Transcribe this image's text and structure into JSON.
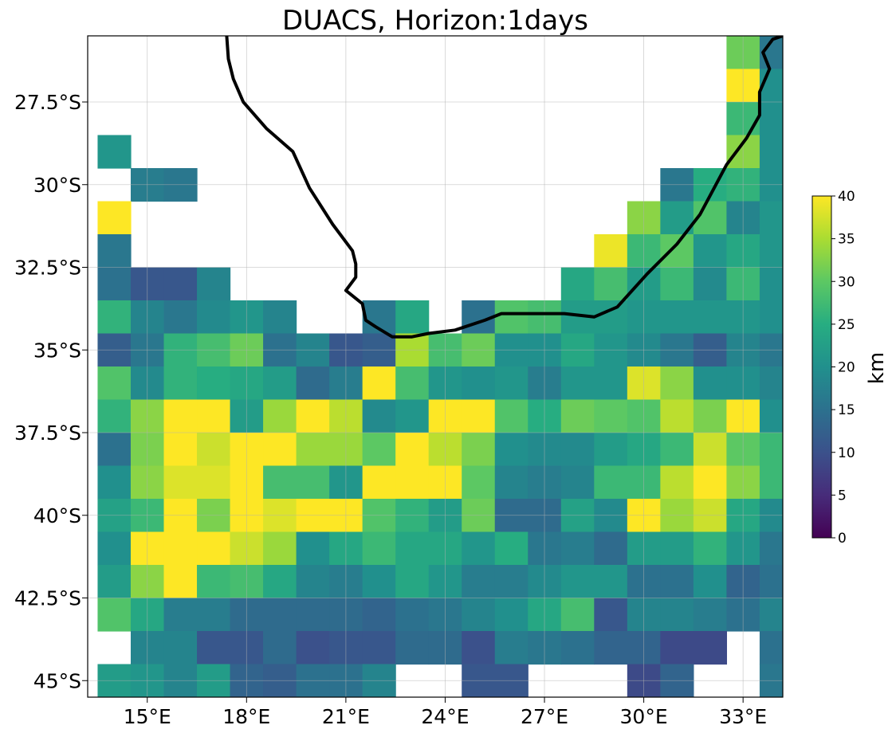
{
  "chart_data": {
    "type": "heatmap",
    "title": "DUACS, Horizon:1days",
    "x_ticks": [
      "15°E",
      "18°E",
      "21°E",
      "24°E",
      "27°E",
      "30°E",
      "33°E"
    ],
    "y_ticks": [
      "27.5°S",
      "30°S",
      "32.5°S",
      "35°S",
      "37.5°S",
      "40°S",
      "42.5°S",
      "45°S"
    ],
    "lon_centers": [
      14,
      15,
      16,
      17,
      18,
      19,
      20,
      21,
      22,
      23,
      24,
      25,
      26,
      27,
      28,
      29,
      30,
      31,
      32,
      33,
      34
    ],
    "lat_centers": [
      -26,
      -27,
      -28,
      -29,
      -30,
      -31,
      -32,
      -33,
      -34,
      -35,
      -36,
      -37,
      -38,
      -39,
      -40,
      -41,
      -42,
      -43,
      -44,
      -45
    ],
    "xlim": [
      13.2,
      34.2
    ],
    "ylim": [
      -45.5,
      -25.5
    ],
    "values": [
      [
        null,
        null,
        null,
        null,
        null,
        null,
        null,
        null,
        null,
        null,
        null,
        null,
        null,
        null,
        null,
        null,
        null,
        null,
        null,
        31,
        16
      ],
      [
        null,
        null,
        null,
        null,
        null,
        null,
        null,
        null,
        null,
        null,
        null,
        null,
        null,
        null,
        null,
        null,
        null,
        null,
        null,
        40,
        20
      ],
      [
        null,
        null,
        null,
        null,
        null,
        null,
        null,
        null,
        null,
        null,
        null,
        null,
        null,
        null,
        null,
        null,
        null,
        null,
        null,
        27,
        20
      ],
      [
        21,
        null,
        null,
        null,
        null,
        null,
        null,
        null,
        null,
        null,
        null,
        null,
        null,
        null,
        null,
        null,
        null,
        null,
        null,
        33,
        20
      ],
      [
        null,
        17,
        16,
        null,
        null,
        null,
        null,
        null,
        null,
        null,
        null,
        null,
        null,
        null,
        null,
        null,
        null,
        16,
        25,
        26,
        20
      ],
      [
        40,
        null,
        null,
        null,
        null,
        null,
        null,
        null,
        null,
        null,
        null,
        null,
        null,
        null,
        null,
        null,
        33,
        22,
        29,
        18,
        21
      ],
      [
        16,
        null,
        null,
        null,
        null,
        null,
        null,
        null,
        null,
        null,
        null,
        null,
        null,
        null,
        null,
        39,
        27,
        30,
        21,
        24,
        21
      ],
      [
        15,
        11,
        11,
        18,
        null,
        null,
        null,
        null,
        null,
        null,
        null,
        null,
        null,
        null,
        24,
        28,
        22,
        27,
        19,
        27,
        20
      ],
      [
        26,
        18,
        16,
        19,
        21,
        18,
        null,
        null,
        16,
        24,
        null,
        15,
        29,
        28,
        22,
        22,
        21,
        21,
        21,
        21,
        20
      ],
      [
        12,
        16,
        26,
        28,
        31,
        15,
        18,
        11,
        12,
        35,
        28,
        31,
        20,
        20,
        24,
        21,
        19,
        16,
        12,
        18,
        16
      ],
      [
        29,
        19,
        26,
        25,
        24,
        22,
        14,
        17,
        40,
        28,
        21,
        20,
        21,
        17,
        21,
        21,
        38,
        33,
        20,
        20,
        18
      ],
      [
        26,
        33,
        40,
        40,
        22,
        34,
        40,
        36,
        19,
        21,
        40,
        40,
        29,
        25,
        31,
        30,
        29,
        36,
        32,
        40,
        20
      ],
      [
        15,
        32,
        40,
        37,
        40,
        40,
        34,
        34,
        30,
        40,
        36,
        32,
        20,
        19,
        19,
        22,
        24,
        27,
        37,
        30,
        27
      ],
      [
        20,
        33,
        38,
        38,
        40,
        28,
        28,
        21,
        40,
        40,
        40,
        30,
        18,
        17,
        18,
        27,
        27,
        36,
        40,
        33,
        27
      ],
      [
        23,
        27,
        40,
        32,
        40,
        38,
        40,
        40,
        29,
        26,
        22,
        31,
        14,
        14,
        23,
        19,
        40,
        34,
        37,
        24,
        19
      ],
      [
        20,
        40,
        40,
        40,
        37,
        34,
        20,
        24,
        27,
        24,
        24,
        21,
        25,
        16,
        17,
        14,
        22,
        22,
        26,
        21,
        16
      ],
      [
        22,
        33,
        40,
        27,
        28,
        24,
        18,
        17,
        20,
        24,
        21,
        17,
        17,
        19,
        21,
        21,
        15,
        15,
        20,
        13,
        15
      ],
      [
        29,
        24,
        17,
        17,
        14,
        14,
        14,
        14,
        13,
        15,
        16,
        18,
        20,
        24,
        28,
        11,
        18,
        18,
        17,
        15,
        18
      ],
      [
        null,
        18,
        18,
        11,
        11,
        14,
        10,
        11,
        11,
        14,
        14,
        10,
        17,
        16,
        15,
        13,
        13,
        9,
        9,
        null,
        15
      ],
      [
        22,
        21,
        18,
        22,
        13,
        12,
        15,
        15,
        18,
        null,
        null,
        11,
        11,
        null,
        null,
        null,
        9,
        13,
        null,
        null,
        16
      ]
    ],
    "coastline_lonlat": [
      [
        17.4,
        -25.5
      ],
      [
        17.45,
        -26.2
      ],
      [
        17.6,
        -26.8
      ],
      [
        17.9,
        -27.5
      ],
      [
        18.6,
        -28.3
      ],
      [
        19.4,
        -29.0
      ],
      [
        19.9,
        -30.1
      ],
      [
        20.6,
        -31.2
      ],
      [
        21.2,
        -32.0
      ],
      [
        21.3,
        -32.4
      ],
      [
        21.3,
        -32.8
      ],
      [
        21.0,
        -33.2
      ],
      [
        21.5,
        -33.6
      ],
      [
        21.6,
        -34.1
      ],
      [
        21.9,
        -34.3
      ],
      [
        22.4,
        -34.6
      ],
      [
        23.0,
        -34.6
      ],
      [
        23.5,
        -34.5
      ],
      [
        24.3,
        -34.4
      ],
      [
        25.2,
        -34.1
      ],
      [
        25.7,
        -33.9
      ],
      [
        26.5,
        -33.9
      ],
      [
        27.6,
        -33.9
      ],
      [
        28.5,
        -34.0
      ],
      [
        29.2,
        -33.7
      ],
      [
        30.1,
        -32.7
      ],
      [
        31.0,
        -31.8
      ],
      [
        31.7,
        -30.9
      ],
      [
        32.5,
        -29.4
      ],
      [
        33.1,
        -28.6
      ],
      [
        33.5,
        -27.9
      ],
      [
        33.5,
        -27.2
      ],
      [
        33.8,
        -26.5
      ],
      [
        33.6,
        -26.0
      ],
      [
        33.9,
        -25.6
      ],
      [
        34.2,
        -25.5
      ]
    ],
    "colorbar": {
      "colormap": "viridis",
      "vmin": 0,
      "vmax": 40,
      "ticks": [
        "0",
        "5",
        "10",
        "15",
        "20",
        "25",
        "30",
        "35",
        "40"
      ],
      "label": "km"
    },
    "grid": true
  }
}
